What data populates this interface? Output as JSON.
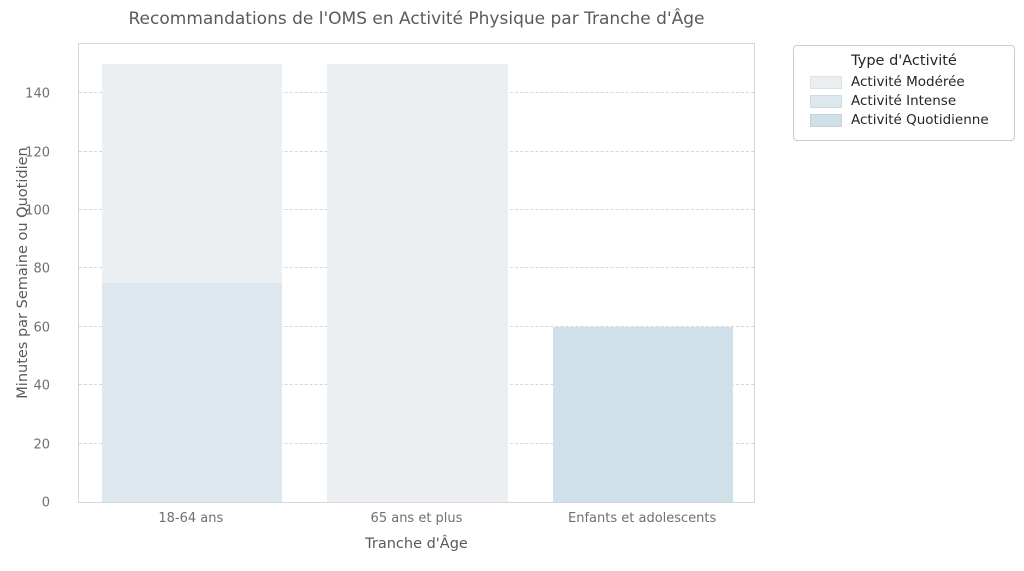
{
  "title": "Recommandations de l'OMS en Activité Physique par Tranche d'Âge",
  "x_axis_label": "Tranche d'Âge",
  "y_axis_label": "Minutes par Semaine ou Quotidien",
  "legend": {
    "title": "Type d'Activité",
    "entries": [
      {
        "label": "Activité Modérée",
        "color": "#ebeff2"
      },
      {
        "label": "Activité Intense",
        "color": "#dce7ee"
      },
      {
        "label": "Activité Quotidienne",
        "color": "#cfe0ea"
      }
    ]
  },
  "chart_data": {
    "type": "bar",
    "title": "Recommandations de l'OMS en Activité Physique par Tranche d'Âge",
    "xlabel": "Tranche d'Âge",
    "ylabel": "Minutes par Semaine ou Quotidien",
    "categories": [
      "18-64 ans",
      "65 ans et plus",
      "Enfants et adolescents"
    ],
    "series": [
      {
        "name": "Activité Modérée",
        "color": "#ebeff2",
        "values": [
          150,
          150,
          null
        ]
      },
      {
        "name": "Activité Intense",
        "color": "#dce7ee",
        "values": [
          75,
          null,
          null
        ]
      },
      {
        "name": "Activité Quotidienne",
        "color": "#cfe0ea",
        "values": [
          null,
          null,
          60
        ]
      }
    ],
    "bar_layout": "overlaid",
    "ylim": [
      0,
      157.5
    ],
    "yticks": [
      0,
      20,
      40,
      60,
      80,
      100,
      120,
      140
    ],
    "grid": "horizontal-dashed",
    "legend_position": "outside-top-right"
  }
}
